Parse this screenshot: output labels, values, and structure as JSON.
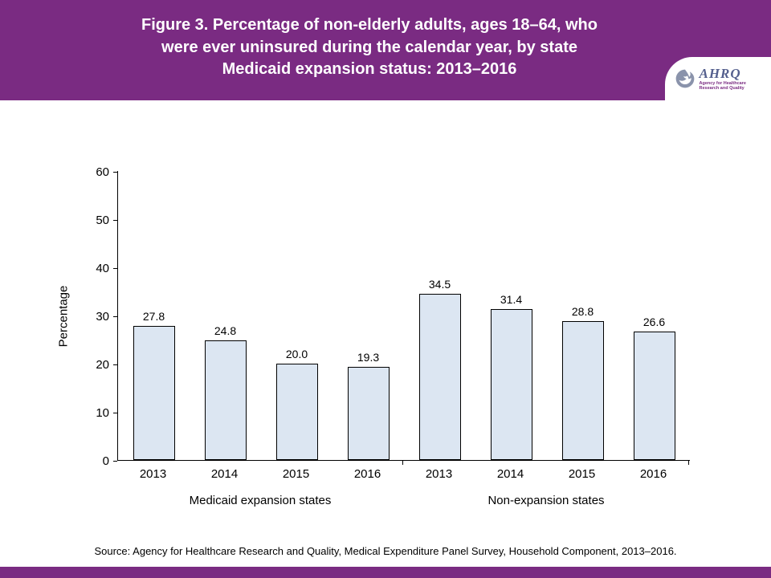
{
  "header": {
    "title": "Figure 3. Percentage of non-elderly adults, ages 18–64, who\nwere ever uninsured during the calendar year, by state\nMedicaid expansion status: 2013–2016",
    "logo": {
      "acronym": "AHRQ",
      "subtitle": "Agency for Healthcare Research and Quality"
    }
  },
  "chart_data": {
    "type": "bar",
    "title": "Percentage of non-elderly adults ever uninsured during the calendar year, by state Medicaid expansion status, 2013–2016",
    "ylabel": "Percentage",
    "xlabel": "",
    "ylim": [
      0,
      60
    ],
    "yticks": [
      0,
      10,
      20,
      30,
      40,
      50,
      60
    ],
    "grid": false,
    "legend": "none",
    "bar_fill": "#dce6f2",
    "bar_border": "#000000",
    "groups": [
      {
        "label": "Medicaid expansion states",
        "categories": [
          "2013",
          "2014",
          "2015",
          "2016"
        ],
        "values": [
          27.8,
          24.8,
          20.0,
          19.3
        ]
      },
      {
        "label": "Non-expansion states",
        "categories": [
          "2013",
          "2014",
          "2015",
          "2016"
        ],
        "values": [
          34.5,
          31.4,
          28.8,
          26.6
        ]
      }
    ]
  },
  "footer": {
    "source": "Source: Agency for Healthcare Research and Quality, Medical Expenditure Panel Survey, Household Component, 2013–2016."
  },
  "colors": {
    "header_purple": "#7a2b82",
    "bar_fill": "#dce6f2"
  }
}
